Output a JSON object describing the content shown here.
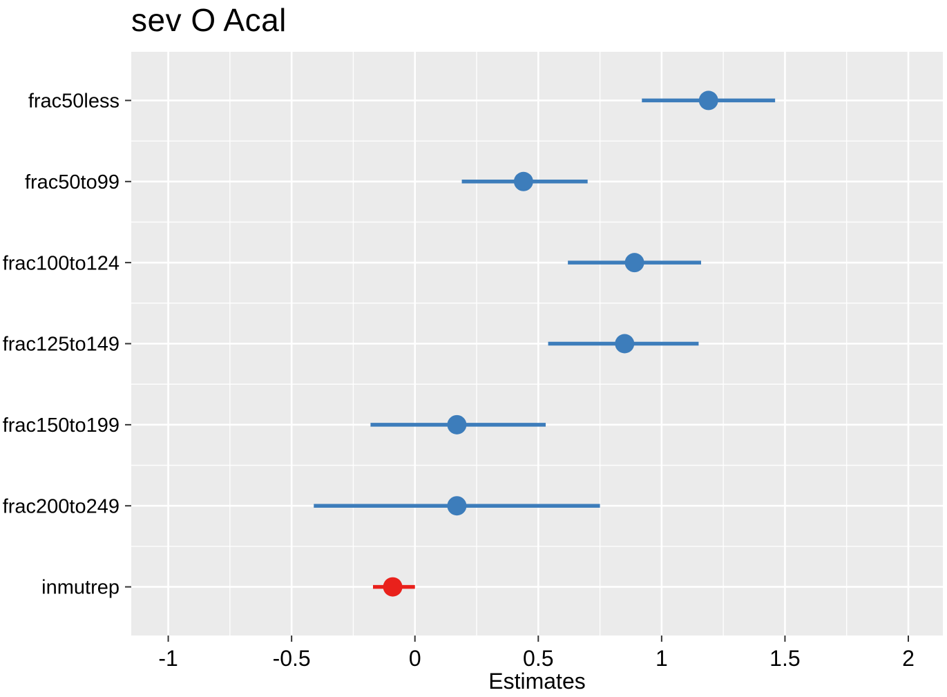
{
  "chart_data": {
    "type": "scatter",
    "subtype": "coefficient-forest-plot",
    "title": "sev O Acal",
    "xlabel": "Estimates",
    "ylabel": "",
    "xlim": [
      -1.15,
      2.14
    ],
    "x_major_ticks": [
      -1,
      -0.5,
      0,
      0.5,
      1,
      1.5,
      2
    ],
    "x_tick_labels": [
      "-1",
      "-0.5",
      "0",
      "0.5",
      "1",
      "1.5",
      "2"
    ],
    "grid": "on",
    "legend": "none",
    "panel_background": "#ebebeb",
    "grid_color": "#ffffff",
    "axis_text_color": "#000000",
    "tick_mark_color": "#333333",
    "categories": [
      "frac50less",
      "frac50to99",
      "frac100to124",
      "frac125to149",
      "frac150to199",
      "frac200to249",
      "inmutrep"
    ],
    "points": [
      {
        "label": "frac50less",
        "estimate": 1.19,
        "ci_low": 0.92,
        "ci_high": 1.46,
        "color": "#3d7dbb"
      },
      {
        "label": "frac50to99",
        "estimate": 0.44,
        "ci_low": 0.19,
        "ci_high": 0.7,
        "color": "#3d7dbb"
      },
      {
        "label": "frac100to124",
        "estimate": 0.89,
        "ci_low": 0.62,
        "ci_high": 1.16,
        "color": "#3d7dbb"
      },
      {
        "label": "frac125to149",
        "estimate": 0.85,
        "ci_low": 0.54,
        "ci_high": 1.15,
        "color": "#3d7dbb"
      },
      {
        "label": "frac150to199",
        "estimate": 0.17,
        "ci_low": -0.18,
        "ci_high": 0.53,
        "color": "#3d7dbb"
      },
      {
        "label": "frac200to249",
        "estimate": 0.17,
        "ci_low": -0.41,
        "ci_high": 0.75,
        "color": "#3d7dbb"
      },
      {
        "label": "inmutrep",
        "estimate": -0.09,
        "ci_low": -0.17,
        "ci_high": 0.0,
        "color": "#e9211c"
      }
    ],
    "colors": {
      "positive_series": "#3d7dbb",
      "negative_series": "#e9211c"
    }
  }
}
